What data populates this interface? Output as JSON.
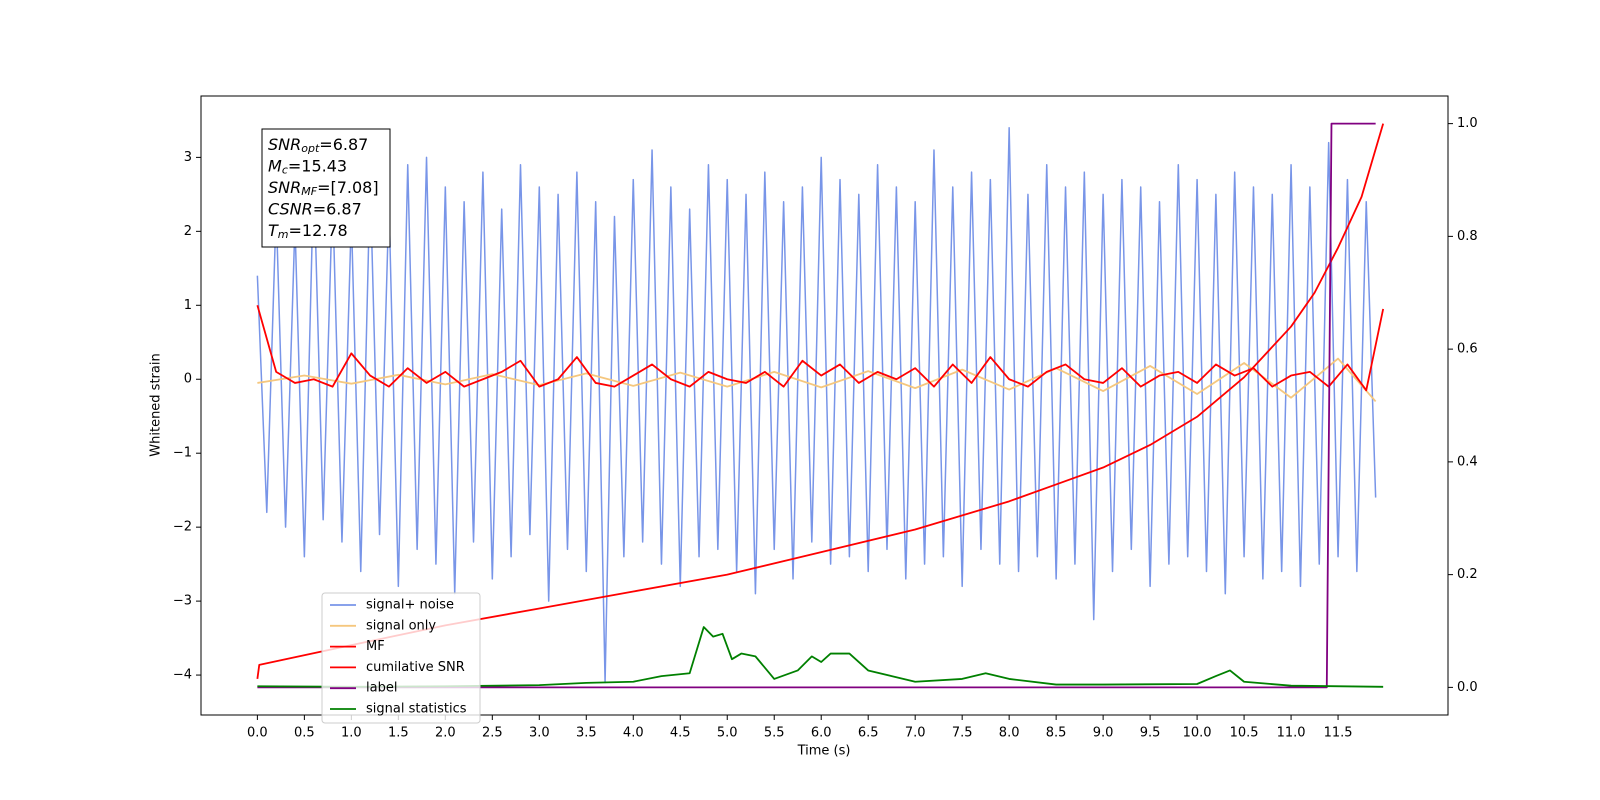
{
  "chart_data": {
    "type": "line",
    "x_label": "Time (s)",
    "y_label": "Whitened strain",
    "xlim": [
      -0.6,
      12.67
    ],
    "ylim": [
      -4.54,
      3.83
    ],
    "y2lim": [
      -0.049,
      1.049
    ],
    "xticks": [
      {
        "value": 0,
        "label": "0.0"
      },
      0.5,
      {
        "value": 1,
        "label": "1.0"
      },
      1.5,
      {
        "value": 2,
        "label": "2.0"
      },
      2.5,
      {
        "value": 3,
        "label": "3.0"
      },
      3.5,
      {
        "value": 4,
        "label": "4.0"
      },
      4.5,
      {
        "value": 5,
        "label": "5.0"
      },
      5.5,
      {
        "value": 6,
        "label": "6.0"
      },
      6.5,
      {
        "value": 7,
        "label": "7.0"
      },
      7.5,
      {
        "value": 8,
        "label": "8.0"
      },
      8.5,
      {
        "value": 9,
        "label": "9.0"
      },
      9.5,
      {
        "value": 10,
        "label": "10.0"
      },
      10.5,
      {
        "value": 11,
        "label": "11.0"
      },
      11.5
    ],
    "yticks": [
      {
        "value": -4,
        "label": "−4"
      },
      {
        "value": -3,
        "label": "−3"
      },
      {
        "value": -2,
        "label": "−2"
      },
      {
        "value": -1,
        "label": "−1"
      },
      0,
      1,
      2,
      3
    ],
    "y2ticks": [
      {
        "value": 0,
        "label": "0.0"
      },
      0.2,
      0.4,
      0.6,
      0.8,
      {
        "value": 1,
        "label": "1.0"
      }
    ],
    "legend": "lower left",
    "annotation": [
      {
        "symbol": "SNR",
        "subscript": "opt",
        "text": "=6.87"
      },
      {
        "symbol": "M",
        "subscript": "c",
        "text": "=15.43"
      },
      {
        "symbol": "SNR",
        "subscript": "MF",
        "text": "=[7.08]"
      },
      {
        "symbol": "CSNR",
        "text": "=6.87"
      },
      {
        "symbol": "T",
        "subscript": "m",
        "text": "=12.78"
      }
    ],
    "series": [
      {
        "name": "signal+ noise",
        "color": "#7895e8",
        "x": [
          0,
          0.1,
          0.2,
          0.3,
          0.4,
          0.5,
          0.6,
          0.7,
          0.8,
          0.9,
          1,
          1.1,
          1.2,
          1.3,
          1.4,
          1.5,
          1.6,
          1.7,
          1.8,
          1.9,
          2,
          2.1,
          2.2,
          2.3,
          2.4,
          2.5,
          2.6,
          2.7,
          2.8,
          2.9,
          3,
          3.1,
          3.2,
          3.3,
          3.4,
          3.5,
          3.6,
          3.7,
          3.8,
          3.9,
          4,
          4.1,
          4.2,
          4.3,
          4.4,
          4.5,
          4.6,
          4.7,
          4.8,
          4.9,
          5,
          5.1,
          5.2,
          5.3,
          5.4,
          5.5,
          5.6,
          5.7,
          5.8,
          5.9,
          6,
          6.1,
          6.2,
          6.3,
          6.4,
          6.5,
          6.6,
          6.7,
          6.8,
          6.9,
          7,
          7.1,
          7.2,
          7.3,
          7.4,
          7.5,
          7.6,
          7.7,
          7.8,
          7.9,
          8,
          8.1,
          8.2,
          8.3,
          8.4,
          8.5,
          8.6,
          8.7,
          8.8,
          8.9,
          9,
          9.1,
          9.2,
          9.3,
          9.4,
          9.5,
          9.6,
          9.7,
          9.8,
          9.9,
          10,
          10.1,
          10.2,
          10.3,
          10.4,
          10.5,
          10.6,
          10.7,
          10.8,
          10.9,
          11,
          11.1,
          11.2,
          11.3,
          11.4,
          11.5,
          11.6,
          11.7,
          11.8,
          11.9
        ],
        "values": [
          1.4,
          -1.8,
          2.3,
          -2.0,
          2.1,
          -2.4,
          2.8,
          -1.9,
          2.5,
          -2.2,
          2.2,
          -2.6,
          2.7,
          -2.1,
          2.4,
          -2.8,
          2.9,
          -2.3,
          3.0,
          -2.5,
          2.6,
          -2.9,
          2.4,
          -2.2,
          2.8,
          -2.7,
          2.3,
          -2.4,
          2.9,
          -2.1,
          2.6,
          -3.0,
          2.5,
          -2.3,
          2.8,
          -2.6,
          2.4,
          -4.1,
          2.2,
          -2.4,
          2.7,
          -2.2,
          3.1,
          -2.5,
          2.6,
          -2.8,
          2.3,
          -2.4,
          2.9,
          -2.3,
          2.7,
          -2.6,
          2.5,
          -2.9,
          2.8,
          -2.3,
          2.4,
          -2.7,
          2.6,
          -2.2,
          3.0,
          -2.5,
          2.7,
          -2.4,
          2.5,
          -2.6,
          2.9,
          -2.3,
          2.6,
          -2.7,
          2.4,
          -2.5,
          3.1,
          -2.4,
          2.6,
          -2.8,
          2.8,
          -2.3,
          2.7,
          -2.5,
          3.4,
          -2.6,
          2.5,
          -2.4,
          2.9,
          -2.7,
          2.6,
          -2.5,
          2.8,
          -3.25,
          2.5,
          -2.6,
          2.7,
          -2.3,
          2.6,
          -2.8,
          2.4,
          -2.5,
          2.9,
          -2.4,
          2.7,
          -2.6,
          2.5,
          -2.9,
          2.8,
          -2.4,
          2.6,
          -2.7,
          2.5,
          -2.6,
          2.9,
          -2.8,
          2.6,
          -2.5,
          3.2,
          -2.4,
          2.7,
          -2.6,
          2.4,
          -1.6
        ]
      },
      {
        "name": "signal only",
        "color": "#f5c77e",
        "x": [
          0,
          0.5,
          1,
          1.5,
          2,
          2.5,
          3,
          3.5,
          4,
          4.5,
          5,
          5.5,
          6,
          6.5,
          7,
          7.5,
          8,
          8.5,
          9,
          9.5,
          10,
          10.5,
          11,
          11.5,
          11.9
        ],
        "values": [
          -0.05,
          0.05,
          -0.06,
          0.06,
          -0.07,
          0.07,
          -0.08,
          0.08,
          -0.09,
          0.09,
          -0.1,
          0.1,
          -0.11,
          0.11,
          -0.12,
          0.13,
          -0.14,
          0.15,
          -0.16,
          0.18,
          -0.2,
          0.22,
          -0.25,
          0.28,
          -0.3
        ]
      },
      {
        "name": "MF",
        "color": "#ff0000",
        "x": [
          0,
          0.2,
          0.4,
          0.6,
          0.8,
          1,
          1.2,
          1.4,
          1.6,
          1.8,
          2,
          2.2,
          2.4,
          2.6,
          2.8,
          3,
          3.2,
          3.4,
          3.6,
          3.8,
          4,
          4.2,
          4.4,
          4.6,
          4.8,
          5,
          5.2,
          5.4,
          5.6,
          5.8,
          6,
          6.2,
          6.4,
          6.6,
          6.8,
          7,
          7.2,
          7.4,
          7.6,
          7.8,
          8,
          8.2,
          8.4,
          8.6,
          8.8,
          9,
          9.2,
          9.4,
          9.6,
          9.8,
          10,
          10.2,
          10.4,
          10.6,
          10.8,
          11,
          11.2,
          11.4,
          11.6,
          11.8,
          11.98
        ],
        "values": [
          1.0,
          0.1,
          -0.05,
          0.0,
          -0.1,
          0.35,
          0.05,
          -0.1,
          0.15,
          -0.05,
          0.1,
          -0.1,
          0.0,
          0.1,
          0.25,
          -0.1,
          0.0,
          0.3,
          -0.05,
          -0.1,
          0.05,
          0.2,
          0.0,
          -0.1,
          0.1,
          0.0,
          -0.05,
          0.1,
          -0.1,
          0.25,
          0.05,
          0.2,
          -0.05,
          0.1,
          0.0,
          0.15,
          -0.1,
          0.2,
          -0.05,
          0.3,
          0.0,
          -0.1,
          0.1,
          0.2,
          0.0,
          -0.05,
          0.15,
          -0.1,
          0.05,
          0.1,
          -0.05,
          0.2,
          0.05,
          0.15,
          -0.1,
          0.05,
          0.1,
          -0.1,
          0.2,
          -0.15,
          0.95
        ]
      },
      {
        "name": "cumilative SNR",
        "color": "#ff0000",
        "axis": "y2",
        "x": [
          0,
          0.02,
          1,
          2,
          3,
          4,
          5,
          6,
          7,
          8,
          8.5,
          9,
          9.5,
          10,
          10.5,
          11,
          11.25,
          11.5,
          11.75,
          11.98
        ],
        "values": [
          0.015,
          0.04,
          0.075,
          0.11,
          0.14,
          0.17,
          0.2,
          0.24,
          0.28,
          0.33,
          0.36,
          0.39,
          0.43,
          0.48,
          0.55,
          0.64,
          0.7,
          0.78,
          0.87,
          1.0
        ]
      },
      {
        "name": "label",
        "color": "#800080",
        "axis": "y2",
        "x": [
          0,
          11.38,
          11.43,
          11.9
        ],
        "values": [
          0,
          0,
          1,
          1
        ]
      },
      {
        "name": "signal statistics",
        "color": "#008000",
        "axis": "y2",
        "x": [
          0,
          1,
          2,
          3,
          3.5,
          4,
          4.3,
          4.6,
          4.75,
          4.85,
          4.95,
          5.05,
          5.15,
          5.3,
          5.5,
          5.75,
          5.9,
          6.0,
          6.1,
          6.3,
          6.5,
          6.75,
          7.0,
          7.5,
          7.75,
          8.0,
          8.5,
          9.0,
          10.0,
          10.2,
          10.35,
          10.5,
          11.0,
          11.98
        ],
        "values": [
          0.002,
          0.001,
          0.002,
          0.004,
          0.008,
          0.01,
          0.02,
          0.025,
          0.107,
          0.09,
          0.095,
          0.05,
          0.06,
          0.055,
          0.015,
          0.03,
          0.055,
          0.045,
          0.06,
          0.06,
          0.03,
          0.02,
          0.01,
          0.015,
          0.025,
          0.015,
          0.005,
          0.005,
          0.006,
          0.02,
          0.03,
          0.01,
          0.003,
          0.001
        ]
      }
    ]
  }
}
